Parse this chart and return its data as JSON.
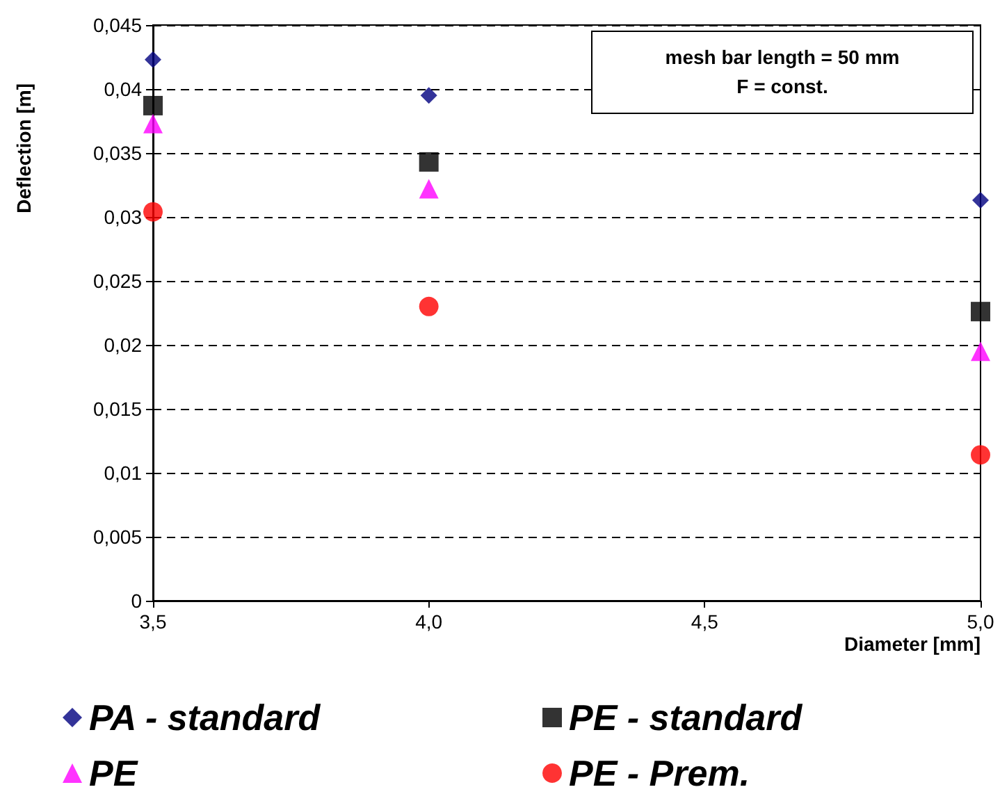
{
  "chart_data": {
    "type": "scatter",
    "xlabel": "Diameter [mm]",
    "ylabel": "Deflection [m]",
    "annotations": [
      "mesh bar length = 50 mm",
      "F = const."
    ],
    "x": [
      3.5,
      4.0,
      5.0
    ],
    "series": [
      {
        "name": "PA - standard",
        "color": "#000080",
        "marker": "diamond",
        "values": [
          0.0423,
          0.0395,
          0.0313
        ]
      },
      {
        "name": "PE - standard",
        "color": "#000000",
        "marker": "square",
        "values": [
          0.0387,
          0.0343,
          0.0226
        ]
      },
      {
        "name": "PE",
        "color": "#ff00ff",
        "marker": "triangle",
        "values": [
          0.0373,
          0.0322,
          0.0195
        ]
      },
      {
        "name": "PE - Prem.",
        "color": "#ff0000",
        "marker": "circle",
        "values": [
          0.0304,
          0.023,
          0.0114
        ]
      }
    ],
    "xlim": [
      3.5,
      5.0
    ],
    "xticks": [
      {
        "value": 3.5,
        "label": "3,5"
      },
      {
        "value": 4.0,
        "label": "4,0"
      },
      {
        "value": 4.5,
        "label": "4,5"
      },
      {
        "value": 5.0,
        "label": "5,0"
      }
    ],
    "ylim": [
      0,
      0.045
    ],
    "yticks": [
      0,
      {
        "value": 0.005,
        "label": "0,005"
      },
      {
        "value": 0.01,
        "label": "0,01"
      },
      {
        "value": 0.015,
        "label": "0,015"
      },
      {
        "value": 0.02,
        "label": "0,02"
      },
      {
        "value": 0.025,
        "label": "0,025"
      },
      {
        "value": 0.03,
        "label": "0,03"
      },
      {
        "value": 0.035,
        "label": "0,035"
      },
      {
        "value": 0.04,
        "label": "0,04"
      },
      {
        "value": 0.045,
        "label": "0,045"
      }
    ],
    "grid": "y",
    "legend": "bottom"
  }
}
